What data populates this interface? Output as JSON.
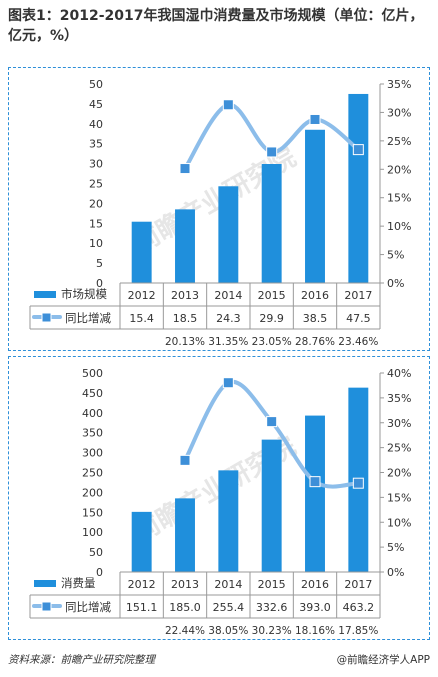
{
  "title": "图表1：2012-2017年我国湿巾消费量及市场规模（单位：亿片，亿元，%）",
  "watermark": "前瞻产业研究院",
  "footer": {
    "source": "资料来源：前瞻产业研究院整理",
    "brand": "@前瞻经济学人APP"
  },
  "colors": {
    "bar": "#1f8fdc",
    "line": "#8cbdea",
    "marker": "#3d8fd8",
    "border": "#2e8fd8"
  },
  "chart_data": [
    {
      "type": "bar",
      "categories": [
        "2012",
        "2013",
        "2014",
        "2015",
        "2016",
        "2017"
      ],
      "ylim": [
        0,
        50
      ],
      "y_ticks": [
        "0",
        "5",
        "10",
        "15",
        "20",
        "25",
        "30",
        "35",
        "40",
        "45",
        "50"
      ],
      "y2lim": [
        0,
        35
      ],
      "y2_ticks": [
        "0%",
        "5%",
        "10%",
        "15%",
        "20%",
        "25%",
        "30%",
        "35%"
      ],
      "series": [
        {
          "name": "市场规模",
          "type": "bar",
          "values": [
            15.4,
            18.5,
            24.3,
            29.9,
            38.5,
            47.5
          ],
          "labels": [
            "15.4",
            "18.5",
            "24.3",
            "29.9",
            "38.5",
            "47.5"
          ]
        },
        {
          "name": "同比增减",
          "type": "line",
          "axis": "right",
          "values": [
            null,
            20.13,
            31.35,
            23.05,
            28.76,
            23.46
          ],
          "labels": [
            "",
            "20.13%",
            "31.35%",
            "23.05%",
            "28.76%",
            "23.46%"
          ]
        }
      ],
      "grid": false,
      "legend": "table-bottom"
    },
    {
      "type": "bar",
      "categories": [
        "2012",
        "2013",
        "2014",
        "2015",
        "2016",
        "2017"
      ],
      "ylim": [
        0,
        500
      ],
      "y_ticks": [
        "0",
        "50",
        "100",
        "150",
        "200",
        "250",
        "300",
        "350",
        "400",
        "450",
        "500"
      ],
      "y2lim": [
        0,
        40
      ],
      "y2_ticks": [
        "0%",
        "5%",
        "10%",
        "15%",
        "20%",
        "25%",
        "30%",
        "35%",
        "40%"
      ],
      "series": [
        {
          "name": "消费量",
          "type": "bar",
          "values": [
            151.1,
            185.0,
            255.4,
            332.6,
            393.0,
            463.2
          ],
          "labels": [
            "151.1",
            "185.0",
            "255.4",
            "332.6",
            "393.0",
            "463.2"
          ]
        },
        {
          "name": "同比增减",
          "type": "line",
          "axis": "right",
          "values": [
            null,
            22.44,
            38.05,
            30.23,
            18.16,
            17.85
          ],
          "labels": [
            "",
            "22.44%",
            "38.05%",
            "30.23%",
            "18.16%",
            "17.85%"
          ]
        }
      ],
      "grid": false,
      "legend": "table-bottom"
    }
  ]
}
